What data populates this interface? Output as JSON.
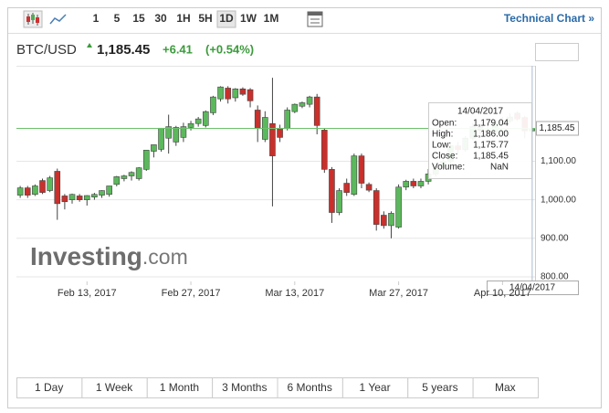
{
  "toolbar": {
    "intervals": [
      "1",
      "5",
      "15",
      "30",
      "1H",
      "5H",
      "1D",
      "1W",
      "1M"
    ],
    "selected_interval": 6,
    "link": "Technical Chart »"
  },
  "header": {
    "symbol": "BTC/USD",
    "price": "1,185.45",
    "change": "+6.41",
    "change_pct": "(+0.54%)"
  },
  "chart_data": {
    "type": "candlestick",
    "x": [
      "2017-02-04",
      "2017-02-05",
      "2017-02-06",
      "2017-02-07",
      "2017-02-08",
      "2017-02-09",
      "2017-02-10",
      "2017-02-11",
      "2017-02-12",
      "2017-02-13",
      "2017-02-14",
      "2017-02-15",
      "2017-02-16",
      "2017-02-17",
      "2017-02-18",
      "2017-02-19",
      "2017-02-20",
      "2017-02-21",
      "2017-02-22",
      "2017-02-23",
      "2017-02-24",
      "2017-02-25",
      "2017-02-26",
      "2017-02-27",
      "2017-02-28",
      "2017-03-01",
      "2017-03-02",
      "2017-03-03",
      "2017-03-04",
      "2017-03-05",
      "2017-03-06",
      "2017-03-07",
      "2017-03-08",
      "2017-03-09",
      "2017-03-10",
      "2017-03-11",
      "2017-03-12",
      "2017-03-13",
      "2017-03-14",
      "2017-03-15",
      "2017-03-16",
      "2017-03-17",
      "2017-03-18",
      "2017-03-19",
      "2017-03-20",
      "2017-03-21",
      "2017-03-22",
      "2017-03-23",
      "2017-03-24",
      "2017-03-25",
      "2017-03-26",
      "2017-03-27",
      "2017-03-28",
      "2017-03-29",
      "2017-03-30",
      "2017-03-31",
      "2017-04-01",
      "2017-04-02",
      "2017-04-03",
      "2017-04-04",
      "2017-04-05",
      "2017-04-06",
      "2017-04-07",
      "2017-04-08",
      "2017-04-09",
      "2017-04-10",
      "2017-04-11",
      "2017-04-12",
      "2017-04-13",
      "2017-04-14"
    ],
    "open": [
      1012,
      1031,
      1014,
      1050,
      1024,
      1074,
      1010,
      1000,
      1010,
      1000,
      1007,
      1012,
      1014,
      1040,
      1055,
      1062,
      1055,
      1079,
      1126,
      1131,
      1160,
      1150,
      1162,
      1188,
      1198,
      1193,
      1226,
      1262,
      1290,
      1265,
      1288,
      1286,
      1233,
      1157,
      1198,
      1186,
      1186,
      1229,
      1243,
      1248,
      1267,
      1181,
      1079,
      967,
      1043,
      1014,
      1114,
      1040,
      1024,
      960,
      933,
      929,
      1033,
      1048,
      1036,
      1048,
      1067,
      1085,
      1100,
      1140,
      1130,
      1160,
      1190,
      1180,
      1175,
      1200,
      1205,
      1225,
      1214,
      1179.04
    ],
    "high": [
      1036,
      1036,
      1040,
      1055,
      1062,
      1081,
      1015,
      1016,
      1015,
      1012,
      1018,
      1025,
      1036,
      1062,
      1065,
      1074,
      1085,
      1129,
      1143,
      1186,
      1221,
      1192,
      1200,
      1205,
      1215,
      1232,
      1270,
      1295,
      1295,
      1290,
      1292,
      1290,
      1245,
      1230,
      1317,
      1195,
      1240,
      1250,
      1255,
      1270,
      1275,
      1185,
      1085,
      1030,
      1055,
      1120,
      1120,
      1045,
      1030,
      970,
      970,
      1040,
      1052,
      1055,
      1055,
      1080,
      1095,
      1105,
      1145,
      1150,
      1165,
      1200,
      1195,
      1195,
      1210,
      1215,
      1225,
      1230,
      1218,
      1186
    ],
    "low": [
      1005,
      1005,
      1010,
      1015,
      1020,
      948,
      975,
      990,
      995,
      985,
      1000,
      1005,
      1008,
      1035,
      1048,
      1050,
      1050,
      1075,
      1110,
      1125,
      1120,
      1140,
      1150,
      1180,
      1190,
      1188,
      1220,
      1255,
      1250,
      1255,
      1270,
      1240,
      1150,
      1150,
      983,
      1150,
      1180,
      1225,
      1238,
      1240,
      1170,
      1070,
      940,
      960,
      1010,
      1010,
      1030,
      1020,
      920,
      925,
      900,
      925,
      1025,
      1030,
      1030,
      1040,
      1060,
      1080,
      1095,
      1120,
      1125,
      1155,
      1170,
      1165,
      1170,
      1195,
      1200,
      1205,
      1160,
      1175.77
    ],
    "close": [
      1031,
      1012,
      1036,
      1019,
      1057,
      990,
      995,
      1014,
      1000,
      1011,
      1014,
      1024,
      1036,
      1060,
      1062,
      1071,
      1083,
      1129,
      1143,
      1186,
      1190,
      1188,
      1190,
      1198,
      1210,
      1229,
      1267,
      1293,
      1262,
      1288,
      1274,
      1257,
      1186,
      1214,
      1114,
      1162,
      1233,
      1248,
      1252,
      1267,
      1193,
      1079,
      967,
      1024,
      1019,
      1114,
      1043,
      1025,
      936,
      933,
      965,
      1033,
      1048,
      1036,
      1048,
      1067,
      1085,
      1100,
      1140,
      1130,
      1160,
      1190,
      1180,
      1175,
      1200,
      1205,
      1215,
      1210,
      1179,
      1185.45
    ],
    "up_color": "#5cb85c",
    "down_color": "#c9302c",
    "xlim": [
      "2017-02-03",
      "2017-04-15"
    ],
    "xticks": [
      {
        "value": "2017-02-13",
        "label": "Feb 13, 2017"
      },
      {
        "value": "2017-02-27",
        "label": "Feb 27, 2017"
      },
      {
        "value": "2017-03-13",
        "label": "Mar 13, 2017"
      },
      {
        "value": "2017-03-27",
        "label": "Mar 27, 2017"
      },
      {
        "value": "2017-04-10",
        "label": "Apr 10, 2017"
      }
    ],
    "ylim": [
      788,
      1348
    ],
    "yticks": [
      {
        "value": 800,
        "label": "800.00"
      },
      {
        "value": 900,
        "label": "900.00"
      },
      {
        "value": 1000,
        "label": "1,000.00"
      },
      {
        "value": 1100,
        "label": "1,100.00"
      }
    ],
    "grid": true,
    "last_price_label": "1,185.45",
    "crosshair_date": "14/04/2017",
    "tooltip": {
      "date": "14/04/2017",
      "rows": [
        [
          "Open:",
          "1,179.04"
        ],
        [
          "High:",
          "1,186.00"
        ],
        [
          "Low:",
          "1,175.77"
        ],
        [
          "Close:",
          "1,185.45"
        ],
        [
          "Volume:",
          "NaN"
        ]
      ]
    },
    "watermark": {
      "brand": "Investing",
      "suffix": ".com"
    }
  },
  "ranges": [
    "1 Day",
    "1 Week",
    "1 Month",
    "3 Months",
    "6 Months",
    "1 Year",
    "5 years",
    "Max"
  ]
}
